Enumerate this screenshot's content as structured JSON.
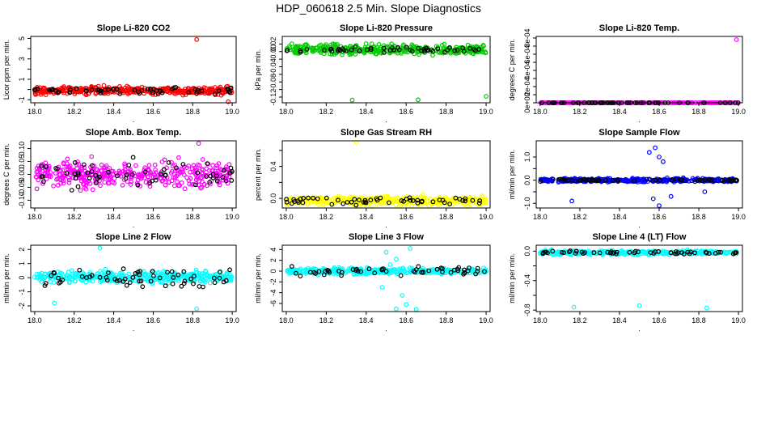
{
  "title": "HDP_060618  2.5 Min. Slope Diagnostics",
  "x_axis_label": ".",
  "colors": {
    "red": "#ff0000",
    "green": "#00cc00",
    "magenta": "#ff00ff",
    "yellow": "#ffff00",
    "blue": "#0000ff",
    "cyan": "#00ffff",
    "black": "#000000"
  },
  "chart_data": [
    {
      "type": "scatter",
      "title": "Slope Li-820 CO2",
      "ylabel": "Licor ppm per min.",
      "xlim": [
        17.98,
        19.02
      ],
      "ylim": [
        -1.3,
        5.2
      ],
      "xticks": [
        18.0,
        18.2,
        18.4,
        18.6,
        18.8,
        19.0
      ],
      "xtick_labels": [
        "18.0",
        "18.2",
        "18.4",
        "18.6",
        "18.8",
        "19.0"
      ],
      "yticks": [
        -1,
        0,
        1,
        2,
        3,
        4,
        5
      ],
      "ytick_labels": [
        "-1",
        "",
        "1",
        "",
        "3",
        "",
        "5"
      ],
      "color": "#ff0000",
      "center": -0.1,
      "spread": 0.35,
      "black_spread": 0.3,
      "n": 380,
      "n_black": 55,
      "outliers": [
        {
          "x": 18.82,
          "y": 4.9
        },
        {
          "x": 18.98,
          "y": -1.2
        }
      ]
    },
    {
      "type": "scatter",
      "title": "Slope Li-820 Pressure",
      "ylabel": "kPa per min.",
      "xlim": [
        17.98,
        19.02
      ],
      "ylim": [
        -0.135,
        0.04
      ],
      "xticks": [
        18.0,
        18.2,
        18.4,
        18.6,
        18.8,
        19.0
      ],
      "xtick_labels": [
        "18.0",
        "18.2",
        "18.4",
        "18.6",
        "18.8",
        "19.0"
      ],
      "yticks": [
        -0.12,
        -0.1,
        -0.08,
        -0.06,
        -0.04,
        -0.02,
        0.0,
        0.02
      ],
      "ytick_labels": [
        "-0.12",
        "",
        "-0.08",
        "",
        "-0.04",
        "",
        "0.00",
        "0.02"
      ],
      "color": "#00cc00",
      "center": 0.005,
      "spread": 0.012,
      "black_spread": 0.006,
      "n": 360,
      "n_black": 55,
      "outliers": [
        {
          "x": 18.33,
          "y": -0.128
        },
        {
          "x": 18.66,
          "y": -0.127
        },
        {
          "x": 19.0,
          "y": -0.118
        }
      ]
    },
    {
      "type": "scatter",
      "title": "Slope Li-820 Temp.",
      "ylabel": "degrees C per min.",
      "xlim": [
        17.98,
        19.02
      ],
      "ylim": [
        0.0,
        0.00082
      ],
      "xticks": [
        18.0,
        18.2,
        18.4,
        18.6,
        18.8,
        19.0
      ],
      "xtick_labels": [
        "18.0",
        "18.2",
        "18.4",
        "18.6",
        "18.8",
        "19.0"
      ],
      "yticks": [
        0.0,
        0.0001,
        0.0002,
        0.0003,
        0.0004,
        0.0005,
        0.0006,
        0.0007,
        0.0008
      ],
      "ytick_labels": [
        "0e+00",
        "",
        "2e-04",
        "",
        "4e-04",
        "",
        "6e-04",
        "",
        "8e-04"
      ],
      "color": "#ff00ff",
      "center": 0.0,
      "spread": 0.0,
      "black_spread": 0.0,
      "n": 240,
      "n_black": 60,
      "outliers": [
        {
          "x": 18.99,
          "y": 0.00078
        }
      ]
    },
    {
      "type": "scatter",
      "title": "Slope Amb. Box Temp.",
      "ylabel": "degrees C per min.",
      "xlim": [
        17.98,
        19.02
      ],
      "ylim": [
        -0.13,
        0.13
      ],
      "xticks": [
        18.0,
        18.2,
        18.4,
        18.6,
        18.8,
        19.0
      ],
      "xtick_labels": [
        "18.0",
        "18.2",
        "18.4",
        "18.6",
        "18.8",
        "19.0"
      ],
      "yticks": [
        -0.1,
        -0.05,
        0.0,
        0.05,
        0.1
      ],
      "ytick_labels": [
        "-0.10",
        "-0.05",
        "0.00",
        "0.05",
        "0.10"
      ],
      "color": "#ff00ff",
      "center": 0.0,
      "spread": 0.045,
      "black_spread": 0.045,
      "n": 380,
      "n_black": 60,
      "outliers": [
        {
          "x": 18.83,
          "y": 0.12
        }
      ]
    },
    {
      "type": "scatter",
      "title": "Slope Gas Stream RH",
      "ylabel": "percent per min.",
      "xlim": [
        17.98,
        19.02
      ],
      "ylim": [
        -0.12,
        0.72
      ],
      "xticks": [
        18.0,
        18.2,
        18.4,
        18.6,
        18.8,
        19.0
      ],
      "xtick_labels": [
        "18.0",
        "18.2",
        "18.4",
        "18.6",
        "18.8",
        "19.0"
      ],
      "yticks": [
        0.0,
        0.2,
        0.4,
        0.6
      ],
      "ytick_labels": [
        "0.0",
        "",
        "0.4",
        ""
      ],
      "color": "#ffff00",
      "center": -0.03,
      "spread": 0.05,
      "black_spread": 0.04,
      "n": 420,
      "n_black": 55,
      "outliers": [
        {
          "x": 18.35,
          "y": 0.7
        }
      ]
    },
    {
      "type": "scatter",
      "title": "Slope Sample Flow",
      "ylabel": "ml/min per min.",
      "xlim": [
        17.98,
        19.02
      ],
      "ylim": [
        -1.2,
        1.7
      ],
      "xticks": [
        18.0,
        18.2,
        18.4,
        18.6,
        18.8,
        19.0
      ],
      "xtick_labels": [
        "18.0",
        "18.2",
        "18.4",
        "18.6",
        "18.8",
        "19.0"
      ],
      "yticks": [
        -1.0,
        -0.5,
        0.0,
        0.5,
        1.0
      ],
      "ytick_labels": [
        "-1.0",
        "",
        "0.0",
        "",
        "1.0"
      ],
      "color": "#0000ff",
      "center": 0.0,
      "spread": 0.07,
      "black_spread": 0.05,
      "n": 380,
      "n_black": 55,
      "outliers": [
        {
          "x": 18.55,
          "y": 1.2
        },
        {
          "x": 18.58,
          "y": 1.4
        },
        {
          "x": 18.6,
          "y": 1.0
        },
        {
          "x": 18.62,
          "y": 0.8
        },
        {
          "x": 18.57,
          "y": -0.8
        },
        {
          "x": 18.6,
          "y": -1.1
        },
        {
          "x": 18.16,
          "y": -0.9
        },
        {
          "x": 18.66,
          "y": -0.7
        },
        {
          "x": 18.83,
          "y": -0.5
        }
      ]
    },
    {
      "type": "scatter",
      "title": "Slope Line 2 Flow",
      "ylabel": "ml/min per min.",
      "xlim": [
        17.98,
        19.02
      ],
      "ylim": [
        -2.4,
        2.3
      ],
      "xticks": [
        18.0,
        18.2,
        18.4,
        18.6,
        18.8,
        19.0
      ],
      "xtick_labels": [
        "18.0",
        "18.2",
        "18.4",
        "18.6",
        "18.8",
        "19.0"
      ],
      "yticks": [
        -2,
        -1,
        0,
        1,
        2
      ],
      "ytick_labels": [
        "-2",
        "-1",
        "0",
        "1",
        "2"
      ],
      "color": "#00ffff",
      "center": 0.05,
      "spread": 0.35,
      "black_spread": 0.8,
      "n": 380,
      "n_black": 60,
      "outliers": [
        {
          "x": 18.33,
          "y": 2.1
        },
        {
          "x": 18.82,
          "y": -2.2
        },
        {
          "x": 18.1,
          "y": -1.8
        }
      ]
    },
    {
      "type": "scatter",
      "title": "Slope Line 3 Flow",
      "ylabel": "ml/min per min.",
      "xlim": [
        17.98,
        19.02
      ],
      "ylim": [
        -7.5,
        4.8
      ],
      "xticks": [
        18.0,
        18.2,
        18.4,
        18.6,
        18.8,
        19.0
      ],
      "xtick_labels": [
        "18.0",
        "18.2",
        "18.4",
        "18.6",
        "18.8",
        "19.0"
      ],
      "yticks": [
        -6,
        -4,
        -2,
        0,
        2,
        4
      ],
      "ytick_labels": [
        "-6",
        "-4",
        "-2",
        "0",
        "2",
        "4"
      ],
      "color": "#00ffff",
      "center": 0.0,
      "spread": 0.5,
      "black_spread": 0.8,
      "n": 380,
      "n_black": 55,
      "outliers": [
        {
          "x": 18.5,
          "y": 3.5
        },
        {
          "x": 18.55,
          "y": 2.2
        },
        {
          "x": 18.62,
          "y": 4.2
        },
        {
          "x": 18.58,
          "y": -4.5
        },
        {
          "x": 18.6,
          "y": -6.2
        },
        {
          "x": 18.55,
          "y": -7.0
        },
        {
          "x": 18.48,
          "y": -3.0
        },
        {
          "x": 18.65,
          "y": -7.1
        },
        {
          "x": 18.52,
          "y": 1.2
        }
      ]
    },
    {
      "type": "scatter",
      "title": "Slope Line 4 (LT) Flow",
      "ylabel": "ml/min per min.",
      "xlim": [
        17.98,
        19.02
      ],
      "ylim": [
        -0.82,
        0.08
      ],
      "xticks": [
        18.0,
        18.2,
        18.4,
        18.6,
        18.8,
        19.0
      ],
      "xtick_labels": [
        "18.0",
        "18.2",
        "18.4",
        "18.6",
        "18.8",
        "19.0"
      ],
      "yticks": [
        -0.8,
        -0.6,
        -0.4,
        -0.2,
        0.0
      ],
      "ytick_labels": [
        "-0.8",
        "",
        "-0.4",
        "",
        "0.0"
      ],
      "color": "#00ffff",
      "center": -0.02,
      "spread": 0.025,
      "black_spread": 0.02,
      "n": 330,
      "n_black": 55,
      "outliers": [
        {
          "x": 18.17,
          "y": -0.76
        },
        {
          "x": 18.5,
          "y": -0.74
        },
        {
          "x": 18.84,
          "y": -0.77
        }
      ]
    }
  ]
}
